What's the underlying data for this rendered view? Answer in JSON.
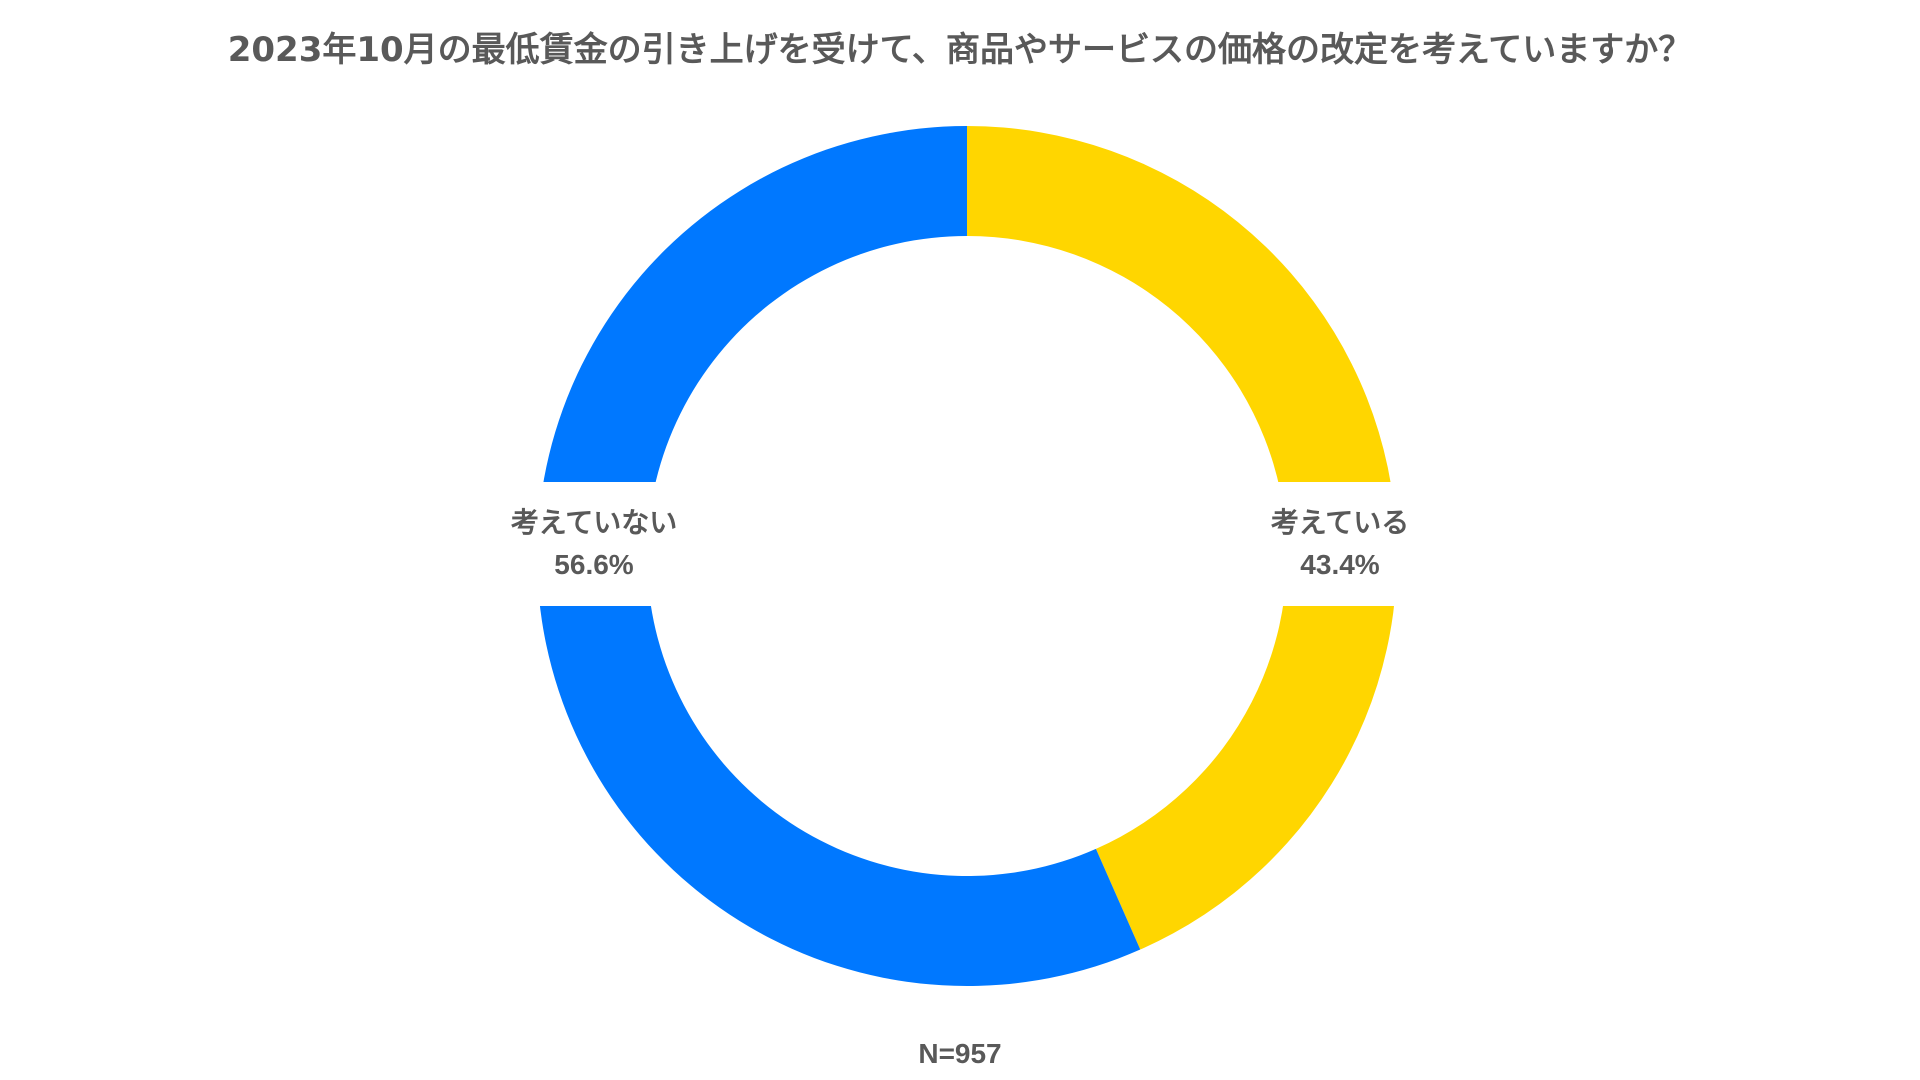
{
  "chart_data": {
    "type": "pie",
    "style": "donut",
    "title": "2023年10月の最低賃金の引き上げを受けて、商品やサービスの価格の改定を考えていますか？",
    "series": [
      {
        "name": "考えている",
        "value": 43.4,
        "value_label": "43.4%",
        "color": "#FFD600"
      },
      {
        "name": "考えていない",
        "value": 56.6,
        "value_label": "56.6%",
        "color": "#0078FF"
      }
    ],
    "start_angle": "12 o'clock",
    "direction": "clockwise",
    "footnote": "N=957"
  }
}
